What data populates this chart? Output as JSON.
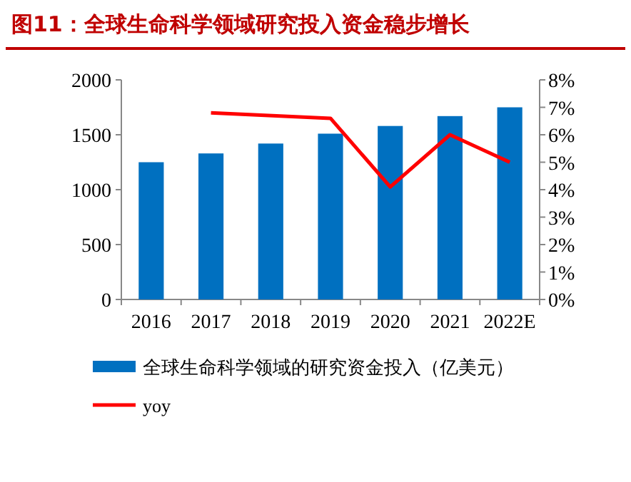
{
  "chart_data": {
    "type": "bar",
    "title": "图11：全球生命科学领域研究投入资金稳步增长",
    "categories": [
      "2016",
      "2017",
      "2018",
      "2019",
      "2020",
      "2021",
      "2022E"
    ],
    "series": [
      {
        "name": "全球生命科学领域的研究资金投入（亿美元）",
        "color": "#0070c0",
        "values": [
          1250,
          1330,
          1420,
          1510,
          1580,
          1670,
          1750
        ]
      },
      {
        "name": "yoy",
        "type": "line",
        "axis": "y2",
        "color": "#ff0000",
        "values": [
          null,
          6.8,
          null,
          6.6,
          4.1,
          6.0,
          5.0
        ]
      }
    ],
    "ylim": [
      0,
      2000
    ],
    "yticks": [
      0,
      500,
      1000,
      1500,
      2000
    ],
    "y2lim": [
      0,
      8
    ],
    "y2ticks": [
      {
        "value": 0,
        "label": "0%"
      },
      {
        "value": 1,
        "label": "1%"
      },
      {
        "value": 2,
        "label": "2%"
      },
      {
        "value": 3,
        "label": "3%"
      },
      {
        "value": 4,
        "label": "4%"
      },
      {
        "value": 5,
        "label": "5%"
      },
      {
        "value": 6,
        "label": "6%"
      },
      {
        "value": 7,
        "label": "7%"
      },
      {
        "value": 8,
        "label": "8%"
      }
    ],
    "legend": "bottom",
    "grid": false,
    "marker": "none"
  }
}
